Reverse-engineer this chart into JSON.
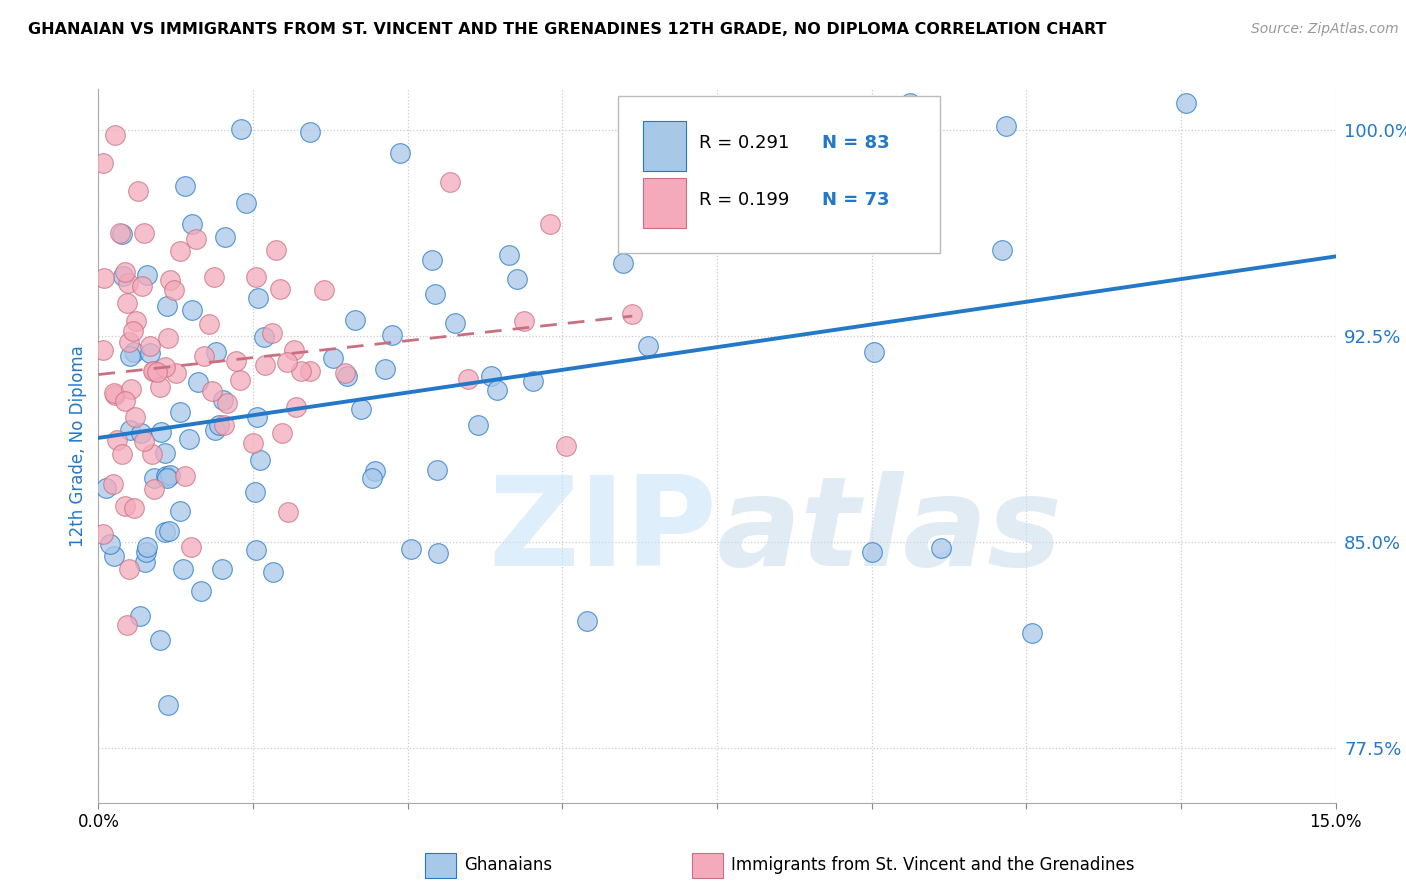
{
  "title": "GHANAIAN VS IMMIGRANTS FROM ST. VINCENT AND THE GRENADINES 12TH GRADE, NO DIPLOMA CORRELATION CHART",
  "source": "Source: ZipAtlas.com",
  "ylabel": "12th Grade, No Diploma",
  "xlim": [
    0.0,
    15.0
  ],
  "ylim": [
    75.5,
    101.5
  ],
  "yticks": [
    77.5,
    85.0,
    92.5,
    100.0
  ],
  "yticklabels": [
    "77.5%",
    "85.0%",
    "92.5%",
    "100.0%"
  ],
  "xtick_positions": [
    0.0,
    1.875,
    3.75,
    5.625,
    7.5,
    9.375,
    11.25,
    13.125,
    15.0
  ],
  "xticklabels_show": [
    "0.0%",
    "",
    "",
    "",
    "",
    "",
    "",
    "",
    "15.0%"
  ],
  "legend_r1": "R = 0.291",
  "legend_n1": "N = 83",
  "legend_r2": "R = 0.199",
  "legend_n2": "N = 73",
  "color_blue": "#A8C8E8",
  "color_pink": "#F4AABB",
  "trendline_blue": "#2478C8",
  "trendline_pink": "#C85070",
  "trendline_pink_dashed": "#C87080",
  "watermark_zip": "ZIP",
  "watermark_atlas": "atlas",
  "label_ghanaians": "Ghanaians",
  "label_immigrants": "Immigrants from St. Vincent and the Grenadines"
}
